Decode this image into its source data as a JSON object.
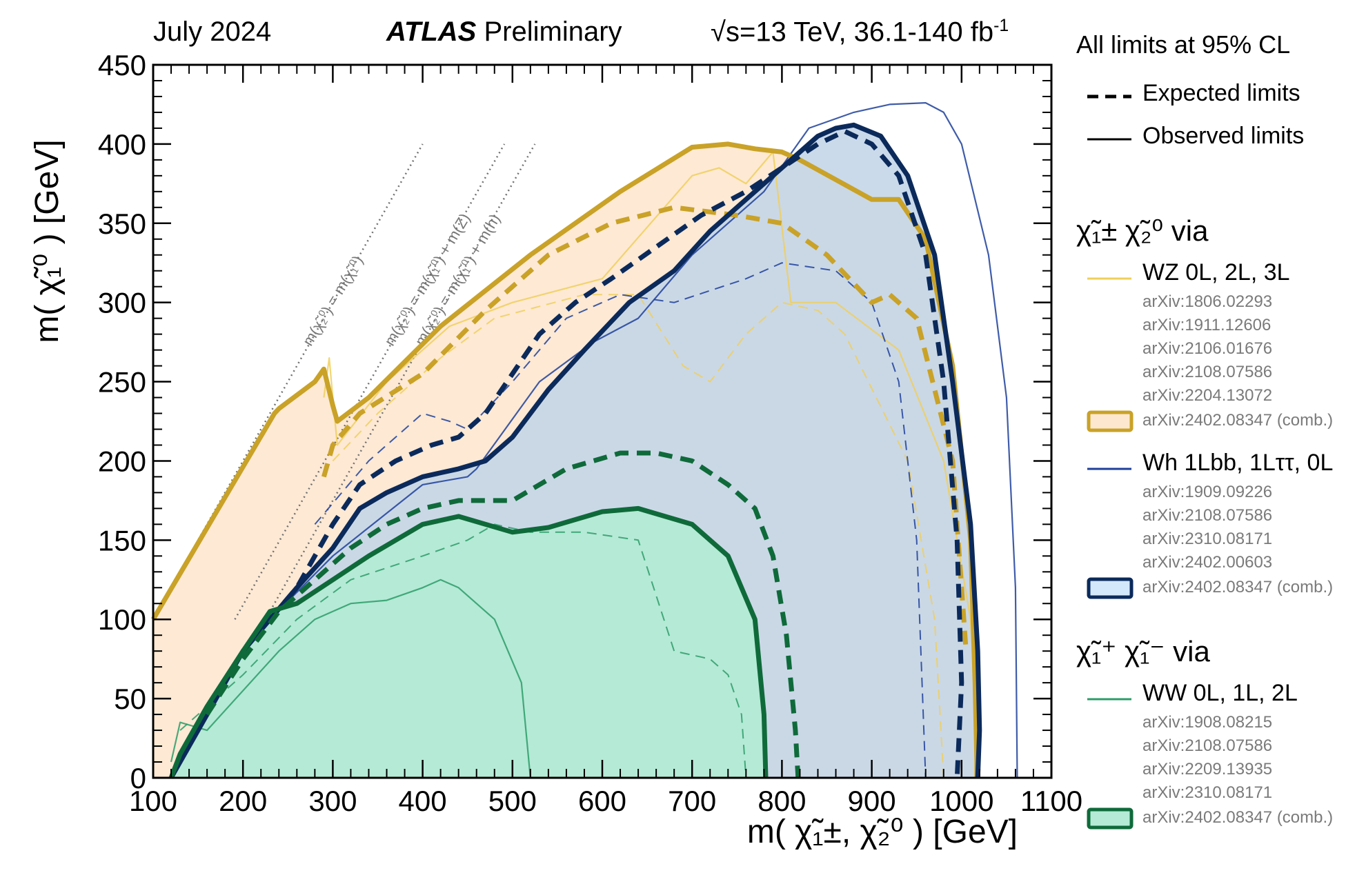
{
  "header": {
    "date": "July 2024",
    "experiment": "ATLAS",
    "status": "Preliminary",
    "energy": "√s=13 TeV, 36.1-140 fb",
    "energy_sup": "-1"
  },
  "legend": {
    "cl_note": "All limits at 95% CL",
    "expected": "Expected limits",
    "observed": "Observed limits",
    "group1_title": "χ̃₁± χ̃₂⁰  via",
    "wz_label": "WZ  0L, 2L, 3L",
    "wz_refs": [
      "arXiv:1806.02293",
      "arXiv:1911.12606",
      "arXiv:2106.01676",
      "arXiv:2108.07586",
      "arXiv:2204.13072"
    ],
    "wz_comb": "arXiv:2402.08347 (comb.)",
    "wh_label": "Wh 1Lbb, 1Lττ, 0L",
    "wh_refs": [
      "arXiv:1909.09226",
      "arXiv:2108.07586",
      "arXiv:2310.08171",
      "arXiv:2402.00603"
    ],
    "wh_comb": "arXiv:2402.08347 (comb.)",
    "group2_title": "χ̃₁⁺ χ̃₁⁻  via",
    "ww_label": "WW  0L, 1L, 2L",
    "ww_refs": [
      "arXiv:1908.08215",
      "arXiv:2108.07586",
      "arXiv:2209.13935",
      "arXiv:2310.08171"
    ],
    "ww_comb": "arXiv:2402.08347 (comb.)"
  },
  "colors": {
    "wz": "#c9a227",
    "wz_thin": "#f0cf5a",
    "wz_fill": "#fde7cf",
    "wh": "#0b2a5b",
    "wh_thin": "#1d3f9a",
    "wh_fill": "#d4e8fb",
    "ww": "#0f6a3a",
    "ww_thin": "#2c9c68",
    "ww_fill": "#b5ebd6",
    "diag": "#707070"
  },
  "chart_data": {
    "type": "line",
    "title": "ATLAS Preliminary",
    "xlabel": "m( χ̃₁±, χ̃₂⁰ ) [GeV]",
    "ylabel": "m( χ̃₁⁰ ) [GeV]",
    "xlim": [
      100,
      1100
    ],
    "ylim": [
      0,
      450
    ],
    "xticks": [
      100,
      200,
      300,
      400,
      500,
      600,
      700,
      800,
      900,
      1000,
      1100
    ],
    "yticks": [
      0,
      50,
      100,
      150,
      200,
      250,
      300,
      350,
      400,
      450
    ],
    "kinematic_lines": [
      {
        "label": "m(χ̃₂⁰) = m(χ̃₁⁰)",
        "offset": 0,
        "x": [
          100,
          400
        ],
        "y": [
          100,
          400
        ]
      },
      {
        "label": "m(χ̃₂⁰) = m(χ̃₁⁰) + m(Z)",
        "offset": 91,
        "x": [
          191,
          491
        ],
        "y": [
          100,
          400
        ]
      },
      {
        "label": "m(χ̃₂⁰) = m(χ̃₁⁰) + m(h)",
        "offset": 125,
        "x": [
          225,
          525
        ],
        "y": [
          100,
          400
        ]
      }
    ],
    "series": [
      {
        "name": "WZ combined observed",
        "style": "observed-comb",
        "group": "wz",
        "x": [
          100,
          235,
          240,
          280,
          290,
          300,
          305,
          340,
          420,
          520,
          620,
          700,
          740,
          770,
          800,
          820,
          900,
          930,
          960,
          990,
          1010,
          1015,
          1017,
          1017
        ],
        "y": [
          100,
          230,
          233,
          250,
          258,
          235,
          225,
          240,
          285,
          330,
          370,
          398,
          400,
          397,
          395,
          390,
          365,
          365,
          340,
          260,
          150,
          60,
          10,
          0
        ]
      },
      {
        "name": "WZ combined expected",
        "style": "expected-comb",
        "group": "wz",
        "x": [
          290,
          300,
          330,
          400,
          470,
          540,
          610,
          680,
          750,
          800,
          850,
          900,
          920,
          950,
          990,
          1005
        ],
        "y": [
          190,
          210,
          230,
          255,
          295,
          330,
          350,
          360,
          355,
          350,
          330,
          300,
          305,
          290,
          200,
          80
        ]
      },
      {
        "name": "WZ observed (individual)",
        "style": "observed-thin",
        "group": "wz",
        "x": [
          290,
          296,
          300,
          305,
          360,
          430,
          500,
          600,
          700,
          730,
          760,
          790,
          810,
          860,
          930,
          980,
          1010,
          1020
        ],
        "y": [
          240,
          265,
          240,
          210,
          250,
          285,
          300,
          315,
          380,
          385,
          375,
          395,
          300,
          300,
          270,
          200,
          100,
          0
        ]
      },
      {
        "name": "WZ expected (individual)",
        "style": "expected-thin",
        "group": "wz",
        "x": [
          300,
          350,
          420,
          480,
          580,
          640,
          690,
          720,
          760,
          800,
          840,
          870,
          940,
          970,
          980
        ],
        "y": [
          200,
          230,
          265,
          290,
          305,
          305,
          260,
          250,
          280,
          300,
          295,
          280,
          200,
          100,
          0
        ]
      },
      {
        "name": "Wh combined observed",
        "style": "observed-comb",
        "group": "wh",
        "x": [
          120,
          160,
          200,
          230,
          260,
          300,
          330,
          360,
          400,
          440,
          470,
          500,
          540,
          580,
          630,
          680,
          720,
          760,
          800,
          840,
          860,
          880,
          910,
          940,
          970,
          990,
          1010,
          1018,
          1020,
          1018
        ],
        "y": [
          0,
          40,
          80,
          100,
          120,
          145,
          170,
          180,
          190,
          195,
          200,
          215,
          245,
          270,
          300,
          320,
          345,
          365,
          385,
          405,
          410,
          412,
          405,
          380,
          330,
          250,
          160,
          80,
          30,
          0
        ]
      },
      {
        "name": "Wh combined expected",
        "style": "expected-comb",
        "group": "wh",
        "x": [
          230,
          260,
          300,
          330,
          370,
          410,
          440,
          470,
          500,
          530,
          570,
          610,
          660,
          710,
          760,
          800,
          840,
          870,
          900,
          930,
          960,
          980,
          995,
          1000,
          995
        ],
        "y": [
          100,
          120,
          160,
          185,
          200,
          210,
          215,
          230,
          255,
          280,
          300,
          315,
          335,
          355,
          370,
          385,
          400,
          408,
          400,
          380,
          330,
          250,
          150,
          60,
          0
        ]
      },
      {
        "name": "Wh observed (individual)",
        "style": "observed-thin",
        "group": "wh",
        "x": [
          230,
          300,
          400,
          450,
          460,
          530,
          590,
          640,
          700,
          780,
          830,
          880,
          920,
          960,
          980,
          1000,
          1030,
          1050,
          1060,
          1062
        ],
        "y": [
          100,
          140,
          185,
          190,
          195,
          250,
          275,
          290,
          330,
          370,
          410,
          420,
          425,
          426,
          420,
          400,
          330,
          240,
          120,
          0
        ]
      },
      {
        "name": "Wh expected (individual)",
        "style": "expected-thin",
        "group": "wh",
        "x": [
          280,
          340,
          400,
          430,
          450,
          500,
          560,
          620,
          680,
          760,
          800,
          860,
          900,
          930,
          950,
          960
        ],
        "y": [
          160,
          200,
          230,
          225,
          220,
          250,
          290,
          305,
          300,
          315,
          325,
          320,
          300,
          250,
          150,
          0
        ]
      },
      {
        "name": "WW combined observed",
        "style": "observed-comb",
        "group": "ww",
        "x": [
          120,
          130,
          160,
          200,
          230,
          260,
          300,
          340,
          400,
          440,
          500,
          540,
          600,
          640,
          700,
          740,
          770,
          780,
          782
        ],
        "y": [
          0,
          15,
          45,
          80,
          105,
          110,
          125,
          140,
          160,
          165,
          155,
          158,
          168,
          170,
          160,
          140,
          100,
          40,
          0
        ]
      },
      {
        "name": "WW combined expected",
        "style": "expected-comb",
        "group": "ww",
        "x": [
          160,
          200,
          240,
          280,
          320,
          360,
          400,
          440,
          470,
          500,
          560,
          620,
          660,
          700,
          740,
          770,
          790,
          805,
          815,
          818
        ],
        "y": [
          40,
          75,
          105,
          125,
          145,
          160,
          170,
          175,
          175,
          175,
          195,
          205,
          205,
          200,
          185,
          170,
          140,
          90,
          30,
          0
        ]
      },
      {
        "name": "WW observed (individual)",
        "style": "observed-thin",
        "group": "ww",
        "x": [
          120,
          130,
          160,
          200,
          240,
          280,
          320,
          360,
          400,
          420,
          440,
          480,
          510,
          520
        ],
        "y": [
          10,
          35,
          30,
          55,
          80,
          100,
          110,
          112,
          120,
          125,
          120,
          100,
          60,
          0
        ]
      },
      {
        "name": "WW expected (individual)",
        "style": "expected-thin",
        "group": "ww",
        "x": [
          130,
          200,
          260,
          320,
          400,
          450,
          480,
          520,
          580,
          640,
          680,
          720,
          740,
          755,
          760
        ],
        "y": [
          30,
          65,
          100,
          125,
          140,
          150,
          160,
          155,
          155,
          150,
          80,
          75,
          65,
          40,
          0
        ]
      }
    ]
  }
}
